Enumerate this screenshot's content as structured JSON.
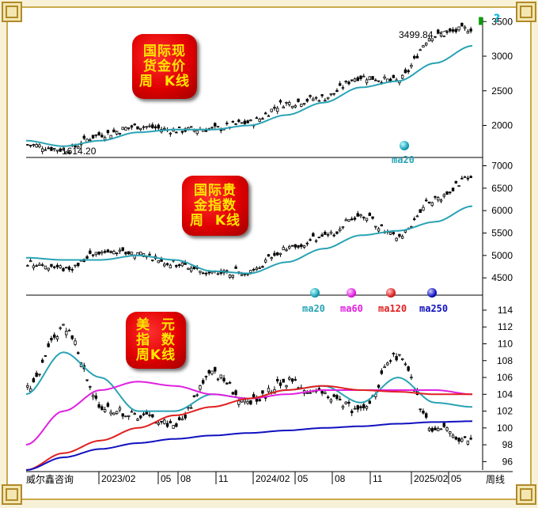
{
  "footer": {
    "brand": "威尔鑫咨询",
    "period_label": "周线",
    "help_icon": "?"
  },
  "panels": [
    {
      "label_lines": [
        "国际现",
        "货金价",
        "周  K线"
      ],
      "max_label": "3499.84",
      "min_label": "1614.20",
      "legend": [
        {
          "name": "ma20",
          "color": "#2aa3b5"
        }
      ],
      "colors": {
        "ma20": "#2aa3b5",
        "candle": "#000000"
      }
    },
    {
      "label_lines": [
        "国际贵",
        "金指数",
        "周  K线"
      ],
      "legend": [
        {
          "name": "ma20",
          "color": "#2aa3b5"
        },
        {
          "name": "ma60",
          "color": "#e020e0"
        },
        {
          "name": "ma120",
          "color": "#e02020"
        },
        {
          "name": "ma250",
          "color": "#1010c0"
        }
      ],
      "colors": {
        "ma20": "#2aa3b5",
        "candle": "#000000"
      }
    },
    {
      "label_lines": [
        "美  元",
        "指  数",
        "周K线"
      ],
      "colors": {
        "ma20": "#2aa3b5",
        "ma60": "#e020e0",
        "ma120": "#e02020",
        "ma250": "#1010c0",
        "candle": "#000000"
      }
    }
  ],
  "chart_data": [
    {
      "type": "candlestick",
      "title": "国际现货金价 周K线",
      "series_name": "ma20",
      "yticks": [
        2000,
        2500,
        3000,
        3500
      ],
      "ylim": [
        1560,
        3560
      ],
      "x": [
        "2022-07",
        "2022-10",
        "2023-01",
        "2023-04",
        "2023-07",
        "2023-10",
        "2024-01",
        "2024-04",
        "2024-07",
        "2024-10",
        "2025-01",
        "2025-04",
        "2025-06"
      ],
      "close": [
        1720,
        1650,
        1870,
        1990,
        1930,
        1950,
        2040,
        2320,
        2400,
        2700,
        2640,
        3300,
        3400
      ],
      "ma20": [
        1780,
        1700,
        1780,
        1900,
        1940,
        1940,
        2000,
        2150,
        2330,
        2550,
        2640,
        2900,
        3150
      ],
      "annotations": [
        {
          "text": "3499.84",
          "value": 3499.84
        },
        {
          "text": "1614.20",
          "value": 1614.2
        }
      ]
    },
    {
      "type": "candlestick",
      "title": "国际贵金指数 周K线",
      "series_name": "ma20",
      "yticks": [
        4500,
        5000,
        5500,
        6000,
        6500,
        7000
      ],
      "ylim": [
        4150,
        7150
      ],
      "x": [
        "2022-07",
        "2022-10",
        "2023-01",
        "2023-04",
        "2023-07",
        "2023-10",
        "2024-01",
        "2024-04",
        "2024-07",
        "2024-10",
        "2025-01",
        "2025-04",
        "2025-06"
      ],
      "close": [
        4850,
        4700,
        5050,
        5050,
        4800,
        4600,
        4650,
        5150,
        5400,
        5900,
        5400,
        6250,
        6750
      ],
      "ma20": [
        4950,
        4900,
        4900,
        5000,
        4900,
        4650,
        4600,
        4850,
        5150,
        5450,
        5550,
        5750,
        6100
      ]
    },
    {
      "type": "candlestick",
      "title": "美元指数 周K线",
      "yticks": [
        96,
        98,
        100,
        102,
        104,
        106,
        108,
        110,
        112,
        114
      ],
      "ylim": [
        95,
        115.5
      ],
      "x_tick_labels": [
        "2023/02",
        "05",
        "08",
        "11",
        "2024/02",
        "05",
        "08",
        "11",
        "2025/02",
        "05"
      ],
      "x": [
        "2022-07",
        "2022-10",
        "2023-01",
        "2023-04",
        "2023-07",
        "2023-10",
        "2024-01",
        "2024-04",
        "2024-07",
        "2024-10",
        "2025-01",
        "2025-04",
        "2025-06"
      ],
      "close": [
        105,
        112,
        102.5,
        101.5,
        100.5,
        106.5,
        103,
        105.5,
        104,
        102,
        108.5,
        100,
        98.5
      ],
      "series": [
        {
          "name": "ma20",
          "values": [
            104,
            109,
            106,
            102,
            102,
            104,
            103.5,
            104.5,
            105,
            103,
            106,
            103,
            102.5
          ]
        },
        {
          "name": "ma60",
          "values": [
            98,
            102,
            104.5,
            105.5,
            105,
            104,
            103.5,
            104,
            104.5,
            104.5,
            104.5,
            104.5,
            104
          ]
        },
        {
          "name": "ma120",
          "values": [
            95,
            97,
            98.5,
            100,
            101.5,
            102.5,
            103.5,
            104.5,
            105,
            104.5,
            104.3,
            104,
            104
          ]
        },
        {
          "name": "ma250",
          "values": [
            95,
            96.5,
            97.5,
            98.2,
            98.7,
            99.1,
            99.4,
            99.7,
            100,
            100.2,
            100.5,
            100.7,
            100.8
          ]
        }
      ]
    }
  ]
}
